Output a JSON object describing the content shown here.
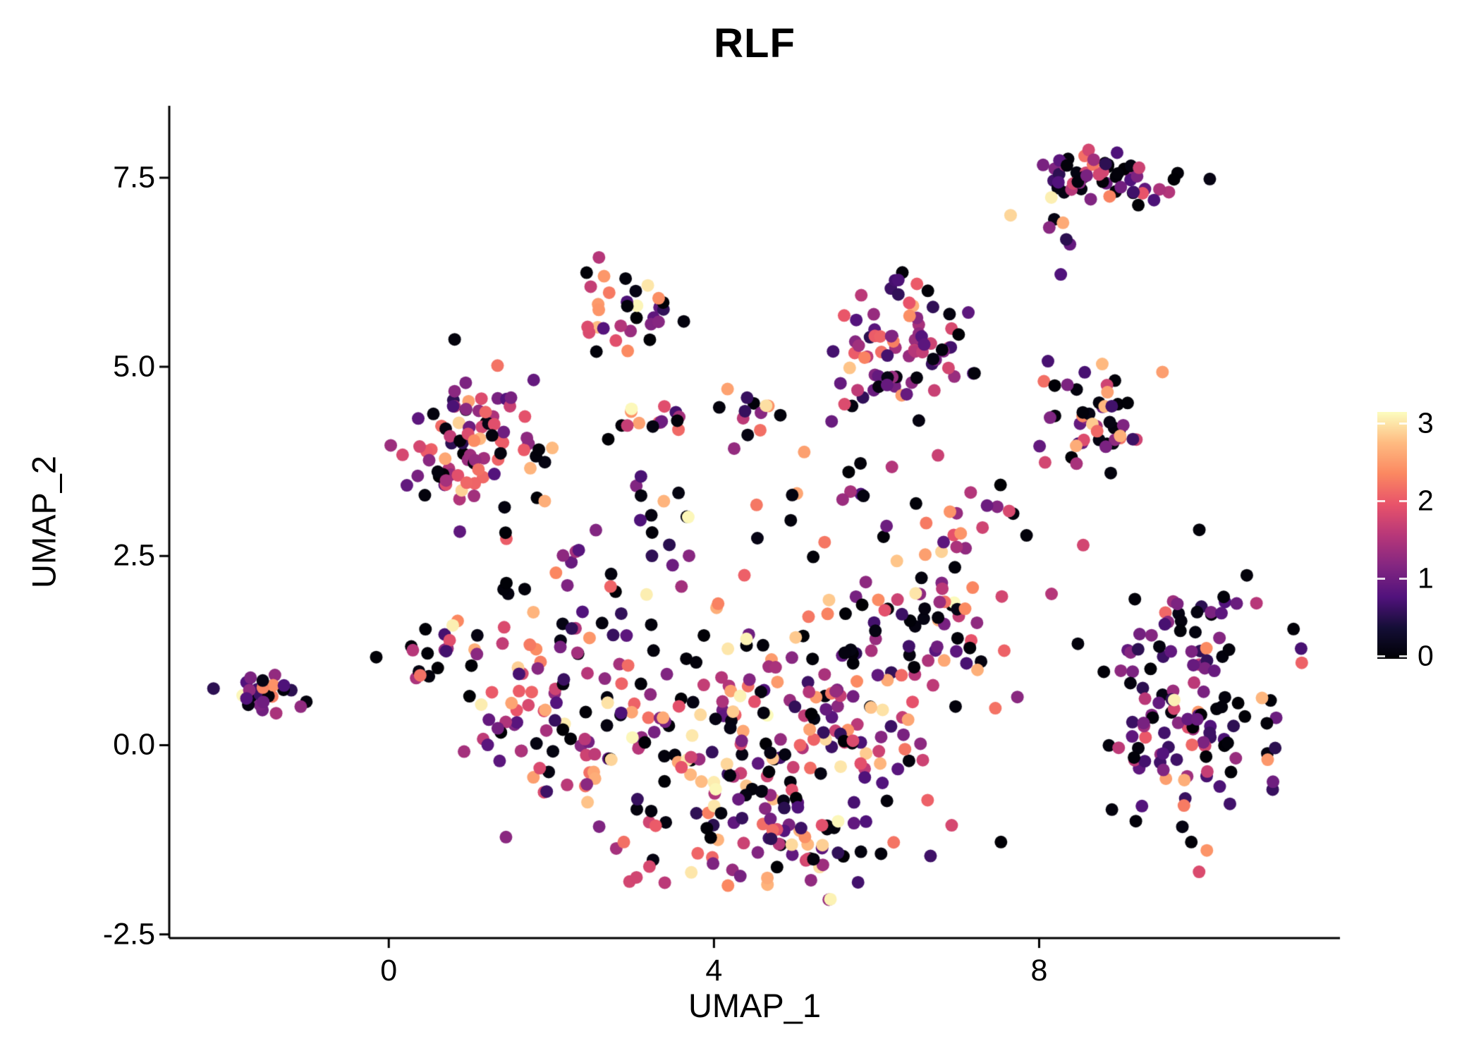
{
  "colors": {
    "background": "#ffffff",
    "axis_line": "#000000",
    "text": "#000000"
  },
  "chart_data": {
    "type": "scatter",
    "title": "RLF",
    "xlabel": "UMAP_1",
    "ylabel": "UMAP_2",
    "x_range": [
      -2.7,
      11.7
    ],
    "y_range": [
      -2.55,
      8.45
    ],
    "grid": false,
    "point_radius_px": 9,
    "seed": 42,
    "x_ticks": [
      {
        "value": 0,
        "label": "0"
      },
      {
        "value": 4,
        "label": "4"
      },
      {
        "value": 8,
        "label": "8"
      }
    ],
    "y_ticks": [
      {
        "value": -2.5,
        "label": "-2.5"
      },
      {
        "value": 0.0,
        "label": "0.0"
      },
      {
        "value": 2.5,
        "label": "2.5"
      },
      {
        "value": 5.0,
        "label": "5.0"
      },
      {
        "value": 7.5,
        "label": "7.5"
      }
    ],
    "legend": {
      "position": "right",
      "vmin": 0,
      "vmax": 3,
      "colormap": "magma",
      "stops": [
        [
          0,
          "#000004"
        ],
        [
          0.125,
          "#140e36"
        ],
        [
          0.25,
          "#51127c"
        ],
        [
          0.375,
          "#832681"
        ],
        [
          0.5,
          "#b73779"
        ],
        [
          0.625,
          "#e8536a"
        ],
        [
          0.75,
          "#fb8861"
        ],
        [
          0.875,
          "#febb81"
        ],
        [
          1,
          "#fcfdbf"
        ]
      ],
      "ticks": [
        {
          "value": 3,
          "label": "3"
        },
        {
          "value": 2,
          "label": "2"
        },
        {
          "value": 1,
          "label": "1"
        },
        {
          "value": 0,
          "label": "0"
        }
      ]
    },
    "value_bins": [
      [
        0.0,
        0.12
      ],
      [
        0.5,
        1.3
      ],
      [
        1.3,
        2.1
      ],
      [
        2.1,
        2.7
      ],
      [
        2.7,
        3.0
      ]
    ],
    "default_mix": [
      0.28,
      0.32,
      0.26,
      0.11,
      0.03
    ],
    "clusters": [
      {
        "name": "far-left",
        "cx": -1.5,
        "cy": 0.68,
        "sx": 0.2,
        "sy": 0.12,
        "n": 26,
        "mix": [
          0.38,
          0.34,
          0.14,
          0.11,
          0.03
        ]
      },
      {
        "name": "left-upper",
        "cx": 1.05,
        "cy": 4.0,
        "sx": 0.4,
        "sy": 0.52,
        "n": 88
      },
      {
        "name": "top-left-small",
        "cx": 2.85,
        "cy": 5.75,
        "sx": 0.27,
        "sy": 0.25,
        "n": 32
      },
      {
        "name": "top-mid",
        "cx": 6.25,
        "cy": 5.25,
        "sx": 0.42,
        "sy": 0.45,
        "n": 78,
        "mix": [
          0.22,
          0.5,
          0.2,
          0.06,
          0.02
        ]
      },
      {
        "name": "top-right",
        "cx": 8.8,
        "cy": 7.45,
        "sx": 0.48,
        "sy": 0.2,
        "n": 58,
        "mix": [
          0.25,
          0.45,
          0.22,
          0.06,
          0.02
        ]
      },
      {
        "name": "topright-fringe",
        "cx": 8.15,
        "cy": 6.7,
        "sx": 0.3,
        "sy": 0.22,
        "n": 8,
        "mix": [
          0.25,
          0.5,
          0.2,
          0.04,
          0.01
        ]
      },
      {
        "name": "right-upper",
        "cx": 8.65,
        "cy": 4.3,
        "sx": 0.32,
        "sy": 0.38,
        "n": 48
      },
      {
        "name": "upper-band",
        "cx": 3.9,
        "cy": 4.35,
        "sx": 0.78,
        "sy": 0.17,
        "n": 30
      },
      {
        "name": "upper-scatter",
        "cx": 5.3,
        "cy": 3.35,
        "sx": 0.85,
        "sy": 0.33,
        "n": 18
      },
      {
        "name": "mid-scatter",
        "cx": 3.1,
        "cy": 2.7,
        "sx": 0.75,
        "sy": 0.6,
        "n": 28
      },
      {
        "name": "left-knob",
        "cx": 0.6,
        "cy": 1.15,
        "sx": 0.24,
        "sy": 0.28,
        "n": 20
      },
      {
        "name": "main-left",
        "cx": 2.05,
        "cy": 0.65,
        "sx": 0.58,
        "sy": 0.82,
        "n": 95,
        "mix": [
          0.26,
          0.28,
          0.27,
          0.14,
          0.05
        ]
      },
      {
        "name": "main-center",
        "cx": 4.1,
        "cy": 0.05,
        "sx": 0.85,
        "sy": 0.78,
        "n": 125,
        "mix": [
          0.26,
          0.28,
          0.27,
          0.14,
          0.05
        ]
      },
      {
        "name": "main-right",
        "cx": 5.6,
        "cy": 0.6,
        "sx": 0.75,
        "sy": 0.85,
        "n": 112,
        "mix": [
          0.26,
          0.28,
          0.27,
          0.14,
          0.05
        ]
      },
      {
        "name": "main-upper-right",
        "cx": 6.8,
        "cy": 1.9,
        "sx": 0.4,
        "sy": 0.5,
        "n": 42
      },
      {
        "name": "main-bottom",
        "cx": 4.9,
        "cy": -1.35,
        "sx": 0.95,
        "sy": 0.33,
        "n": 55,
        "mix": [
          0.26,
          0.28,
          0.27,
          0.14,
          0.05
        ]
      },
      {
        "name": "bridge-right",
        "cx": 7.6,
        "cy": 3.1,
        "sx": 0.45,
        "sy": 0.4,
        "n": 12
      },
      {
        "name": "right-lower",
        "cx": 9.75,
        "cy": 0.55,
        "sx": 0.58,
        "sy": 0.78,
        "n": 135,
        "mix": [
          0.3,
          0.42,
          0.2,
          0.06,
          0.02
        ]
      }
    ]
  }
}
